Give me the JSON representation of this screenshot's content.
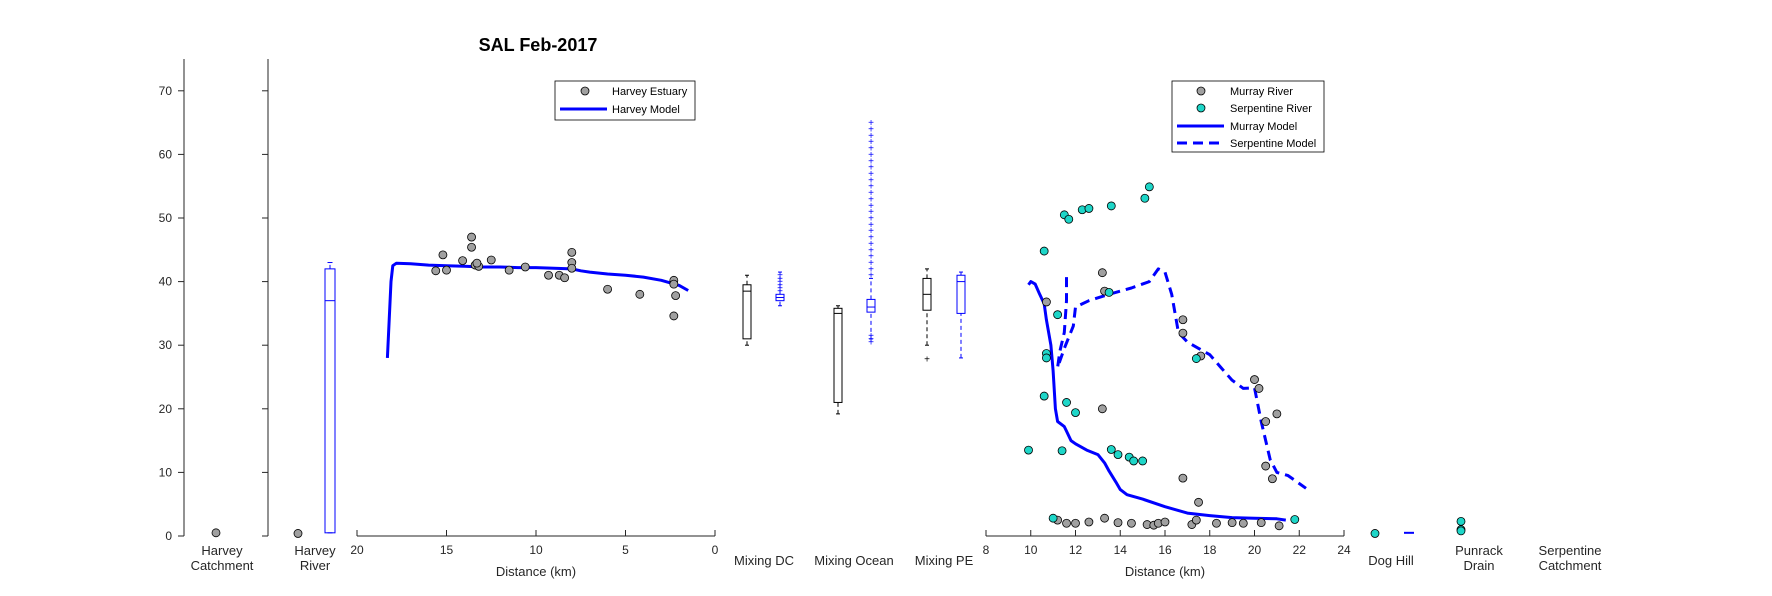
{
  "chart_data": {
    "type": "scatter",
    "title": "SAL Feb-2017",
    "ylim": [
      0,
      75
    ],
    "yticks": [
      0,
      10,
      20,
      30,
      40,
      50,
      60,
      70
    ],
    "xlabel": "Distance (km)",
    "colors": {
      "observed": "#a0a0a0",
      "serpentine_obs": "#1ed6c8",
      "model": "#0000ff",
      "box_obs": "#000000"
    },
    "panels": {
      "harvey_catchment": {
        "label": "Harvey\nCatchment",
        "points": [
          0.5
        ]
      },
      "harvey_river": {
        "label": "Harvey\nRiver",
        "points": [
          0.4
        ],
        "model_box": {
          "min": 0.5,
          "q1": 0.5,
          "median": 37,
          "q3": 42,
          "max": 43
        }
      },
      "harvey": {
        "xlim": [
          20,
          0
        ],
        "xticks": [
          20,
          15,
          10,
          5,
          0
        ],
        "xlabel": "Distance (km)",
        "legend": [
          "Harvey Estuary",
          "Harvey Model"
        ],
        "observed": [
          {
            "x": 15.6,
            "y": 41.7
          },
          {
            "x": 15.2,
            "y": 44.2
          },
          {
            "x": 15.0,
            "y": 41.8
          },
          {
            "x": 14.1,
            "y": 43.3
          },
          {
            "x": 13.6,
            "y": 47.0
          },
          {
            "x": 13.6,
            "y": 45.4
          },
          {
            "x": 13.4,
            "y": 42.6
          },
          {
            "x": 13.2,
            "y": 42.4
          },
          {
            "x": 13.3,
            "y": 42.9
          },
          {
            "x": 12.5,
            "y": 43.4
          },
          {
            "x": 11.5,
            "y": 41.8
          },
          {
            "x": 10.6,
            "y": 42.3
          },
          {
            "x": 9.3,
            "y": 41.0
          },
          {
            "x": 8.7,
            "y": 41.0
          },
          {
            "x": 8.4,
            "y": 40.6
          },
          {
            "x": 8.0,
            "y": 44.6
          },
          {
            "x": 8.0,
            "y": 43.0
          },
          {
            "x": 8.0,
            "y": 42.1
          },
          {
            "x": 6.0,
            "y": 38.8
          },
          {
            "x": 4.2,
            "y": 38.0
          },
          {
            "x": 2.3,
            "y": 40.2
          },
          {
            "x": 2.3,
            "y": 39.6
          },
          {
            "x": 2.2,
            "y": 37.8
          },
          {
            "x": 2.3,
            "y": 34.6
          }
        ],
        "model": [
          [
            18.3,
            28
          ],
          [
            18.2,
            34
          ],
          [
            18.1,
            40
          ],
          [
            18.0,
            42.5
          ],
          [
            17.8,
            42.9
          ],
          [
            17.0,
            42.8
          ],
          [
            16.0,
            42.6
          ],
          [
            15.0,
            42.5
          ],
          [
            14.0,
            42.4
          ],
          [
            13.0,
            42.3
          ],
          [
            12.0,
            42.3
          ],
          [
            11.0,
            42.2
          ],
          [
            10.0,
            42.2
          ],
          [
            9.0,
            42.1
          ],
          [
            8.0,
            42.0
          ],
          [
            7.5,
            41.7
          ],
          [
            7.0,
            41.5
          ],
          [
            6.0,
            41.2
          ],
          [
            5.0,
            41.0
          ],
          [
            4.0,
            40.7
          ],
          [
            3.0,
            40.2
          ],
          [
            2.0,
            39.4
          ],
          [
            1.5,
            38.6
          ]
        ]
      },
      "mixing_dc": {
        "label": "Mixing DC",
        "obs_box": {
          "min": 30,
          "q1": 31,
          "median": 38.5,
          "q3": 39.5,
          "max": 41
        },
        "model_box": {
          "min": 36.2,
          "q1": 37,
          "median": 37.5,
          "q3": 38,
          "max": 41.5,
          "outliers": [
            38.5,
            39,
            39.5,
            40,
            40.5,
            41
          ]
        }
      },
      "mixing_ocean": {
        "label": "Mixing Ocean",
        "obs_box": {
          "min": 19.2,
          "q1": 21,
          "median": 35,
          "q3": 35.8,
          "max": 36.2
        },
        "model_box": {
          "min": 31,
          "q1": 35.2,
          "median": 36,
          "q3": 37.2,
          "max": 40.5,
          "outliers": [
            30.5,
            31,
            31.5,
            41,
            42,
            43,
            44,
            45,
            46,
            47,
            48,
            49,
            50,
            51,
            52,
            53,
            54,
            55,
            56,
            57,
            58,
            59,
            60,
            61,
            62,
            63,
            64,
            65
          ]
        }
      },
      "mixing_pe": {
        "label": "Mixing PE",
        "obs_box": {
          "min": 30,
          "q1": 35.5,
          "median": 38,
          "q3": 40.5,
          "max": 42,
          "outliers": [
            27.8
          ]
        },
        "model_box": {
          "min": 28,
          "q1": 35,
          "median": 40,
          "q3": 41,
          "max": 41.5
        }
      },
      "murray": {
        "xlim": [
          8,
          24
        ],
        "xticks": [
          8,
          10,
          12,
          14,
          16,
          18,
          20,
          22,
          24
        ],
        "xlabel": "Distance (km)",
        "legend": [
          "Murray River",
          "Serpentine River",
          "Murray Model",
          "Serpentine Model"
        ],
        "murray_obs": [
          {
            "x": 10.7,
            "y": 36.8
          },
          {
            "x": 11.2,
            "y": 2.5
          },
          {
            "x": 11.6,
            "y": 2.0
          },
          {
            "x": 12.0,
            "y": 2.0
          },
          {
            "x": 12.6,
            "y": 2.2
          },
          {
            "x": 13.2,
            "y": 41.4
          },
          {
            "x": 13.2,
            "y": 20.0
          },
          {
            "x": 13.3,
            "y": 38.5
          },
          {
            "x": 13.3,
            "y": 2.8
          },
          {
            "x": 13.9,
            "y": 2.1
          },
          {
            "x": 14.5,
            "y": 2.0
          },
          {
            "x": 15.2,
            "y": 1.8
          },
          {
            "x": 15.5,
            "y": 1.7
          },
          {
            "x": 15.7,
            "y": 2.0
          },
          {
            "x": 16.0,
            "y": 2.2
          },
          {
            "x": 16.8,
            "y": 34.0
          },
          {
            "x": 16.8,
            "y": 31.9
          },
          {
            "x": 16.8,
            "y": 9.1
          },
          {
            "x": 17.2,
            "y": 1.8
          },
          {
            "x": 17.4,
            "y": 2.5
          },
          {
            "x": 17.5,
            "y": 5.3
          },
          {
            "x": 17.6,
            "y": 28.3
          },
          {
            "x": 18.3,
            "y": 2.0
          },
          {
            "x": 19.0,
            "y": 2.1
          },
          {
            "x": 19.5,
            "y": 2.0
          },
          {
            "x": 20.0,
            "y": 24.6
          },
          {
            "x": 20.2,
            "y": 23.2
          },
          {
            "x": 20.3,
            "y": 2.1
          },
          {
            "x": 20.5,
            "y": 18.0
          },
          {
            "x": 20.5,
            "y": 11.0
          },
          {
            "x": 20.8,
            "y": 9.0
          },
          {
            "x": 21.0,
            "y": 19.2
          },
          {
            "x": 21.1,
            "y": 1.6
          }
        ],
        "serpentine_obs": [
          {
            "x": 9.9,
            "y": 13.5
          },
          {
            "x": 10.6,
            "y": 44.8
          },
          {
            "x": 10.7,
            "y": 28.7
          },
          {
            "x": 10.7,
            "y": 28.0
          },
          {
            "x": 10.6,
            "y": 22.0
          },
          {
            "x": 11.0,
            "y": 2.8
          },
          {
            "x": 11.2,
            "y": 34.8
          },
          {
            "x": 11.4,
            "y": 13.4
          },
          {
            "x": 11.5,
            "y": 50.5
          },
          {
            "x": 11.7,
            "y": 49.8
          },
          {
            "x": 11.6,
            "y": 21.0
          },
          {
            "x": 12.0,
            "y": 19.4
          },
          {
            "x": 12.3,
            "y": 51.3
          },
          {
            "x": 12.6,
            "y": 51.5
          },
          {
            "x": 13.5,
            "y": 38.3
          },
          {
            "x": 13.6,
            "y": 51.9
          },
          {
            "x": 13.6,
            "y": 13.6
          },
          {
            "x": 13.9,
            "y": 12.8
          },
          {
            "x": 14.4,
            "y": 12.4
          },
          {
            "x": 14.6,
            "y": 11.8
          },
          {
            "x": 15.0,
            "y": 11.8
          },
          {
            "x": 15.1,
            "y": 53.1
          },
          {
            "x": 15.3,
            "y": 54.9
          },
          {
            "x": 17.4,
            "y": 27.9
          },
          {
            "x": 21.8,
            "y": 2.6
          }
        ],
        "murray_model": [
          [
            9.9,
            39.5
          ],
          [
            10.0,
            40.0
          ],
          [
            10.2,
            39.6
          ],
          [
            10.4,
            38.0
          ],
          [
            10.6,
            36.5
          ],
          [
            10.7,
            34.0
          ],
          [
            10.9,
            30.0
          ],
          [
            11.0,
            26.0
          ],
          [
            11.1,
            20.0
          ],
          [
            11.2,
            18.0
          ],
          [
            11.5,
            17.2
          ],
          [
            11.6,
            16.5
          ],
          [
            11.8,
            15.0
          ],
          [
            12.0,
            14.5
          ],
          [
            12.5,
            13.5
          ],
          [
            13.0,
            12.8
          ],
          [
            13.3,
            11.5
          ],
          [
            13.5,
            10.2
          ],
          [
            13.8,
            8.5
          ],
          [
            14.0,
            7.3
          ],
          [
            14.3,
            6.5
          ],
          [
            15.0,
            5.8
          ],
          [
            16.0,
            4.6
          ],
          [
            17.0,
            3.6
          ],
          [
            18.0,
            3.2
          ],
          [
            19.0,
            2.9
          ],
          [
            20.0,
            2.8
          ],
          [
            21.0,
            2.7
          ],
          [
            21.4,
            2.5
          ]
        ],
        "serpentine_model": [
          [
            11.6,
            40.7
          ],
          [
            11.6,
            37.0
          ],
          [
            11.5,
            32.0
          ],
          [
            11.3,
            29.0
          ],
          [
            11.2,
            26.5
          ],
          [
            11.5,
            29.5
          ],
          [
            11.9,
            33.0
          ],
          [
            12.0,
            36.0
          ],
          [
            12.6,
            37.0
          ],
          [
            13.5,
            38.0
          ],
          [
            14.5,
            39.0
          ],
          [
            15.3,
            40.0
          ],
          [
            15.7,
            42.0
          ],
          [
            16.0,
            41.5
          ],
          [
            16.3,
            38.0
          ],
          [
            16.5,
            34.0
          ],
          [
            16.6,
            32.0
          ],
          [
            17.0,
            30.5
          ],
          [
            17.5,
            29.5
          ],
          [
            18.0,
            28.5
          ],
          [
            18.5,
            26.5
          ],
          [
            19.0,
            24.5
          ],
          [
            19.5,
            23.2
          ],
          [
            20.0,
            23.3
          ],
          [
            20.3,
            18.0
          ],
          [
            20.5,
            15.0
          ],
          [
            20.7,
            12.0
          ],
          [
            21.0,
            10.0
          ],
          [
            21.5,
            9.5
          ],
          [
            22.3,
            7.5
          ]
        ]
      },
      "dog_hill": {
        "label": "Dog Hill",
        "points": [
          0.4
        ],
        "model": [
          0.5
        ]
      },
      "punrack_drain": {
        "label": "Punrack\nDrain",
        "points": [
          2.3,
          1.0,
          0.8
        ]
      },
      "serpentine_catchment": {
        "label": "Serpentine\nCatchment",
        "points": []
      }
    }
  }
}
